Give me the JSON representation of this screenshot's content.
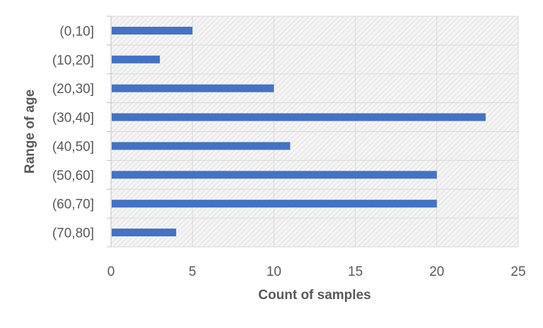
{
  "chart_data": {
    "type": "bar",
    "orientation": "horizontal",
    "categories": [
      "(0,10]",
      "(10,20]",
      "(20,30]",
      "(30,40]",
      "(40,50]",
      "(50,60]",
      "(60,70]",
      "(70,80]"
    ],
    "values": [
      5,
      3,
      10,
      23,
      11,
      20,
      20,
      4
    ],
    "title": "",
    "xlabel": "Count of samples",
    "ylabel": "Range of age",
    "xlim": [
      0,
      25
    ],
    "x_ticks": [
      "0",
      "5",
      "10",
      "15",
      "20",
      "25"
    ],
    "grid": true,
    "legend": "none",
    "bar_color": "#4472C4",
    "plot_background": "hatched light gray"
  }
}
